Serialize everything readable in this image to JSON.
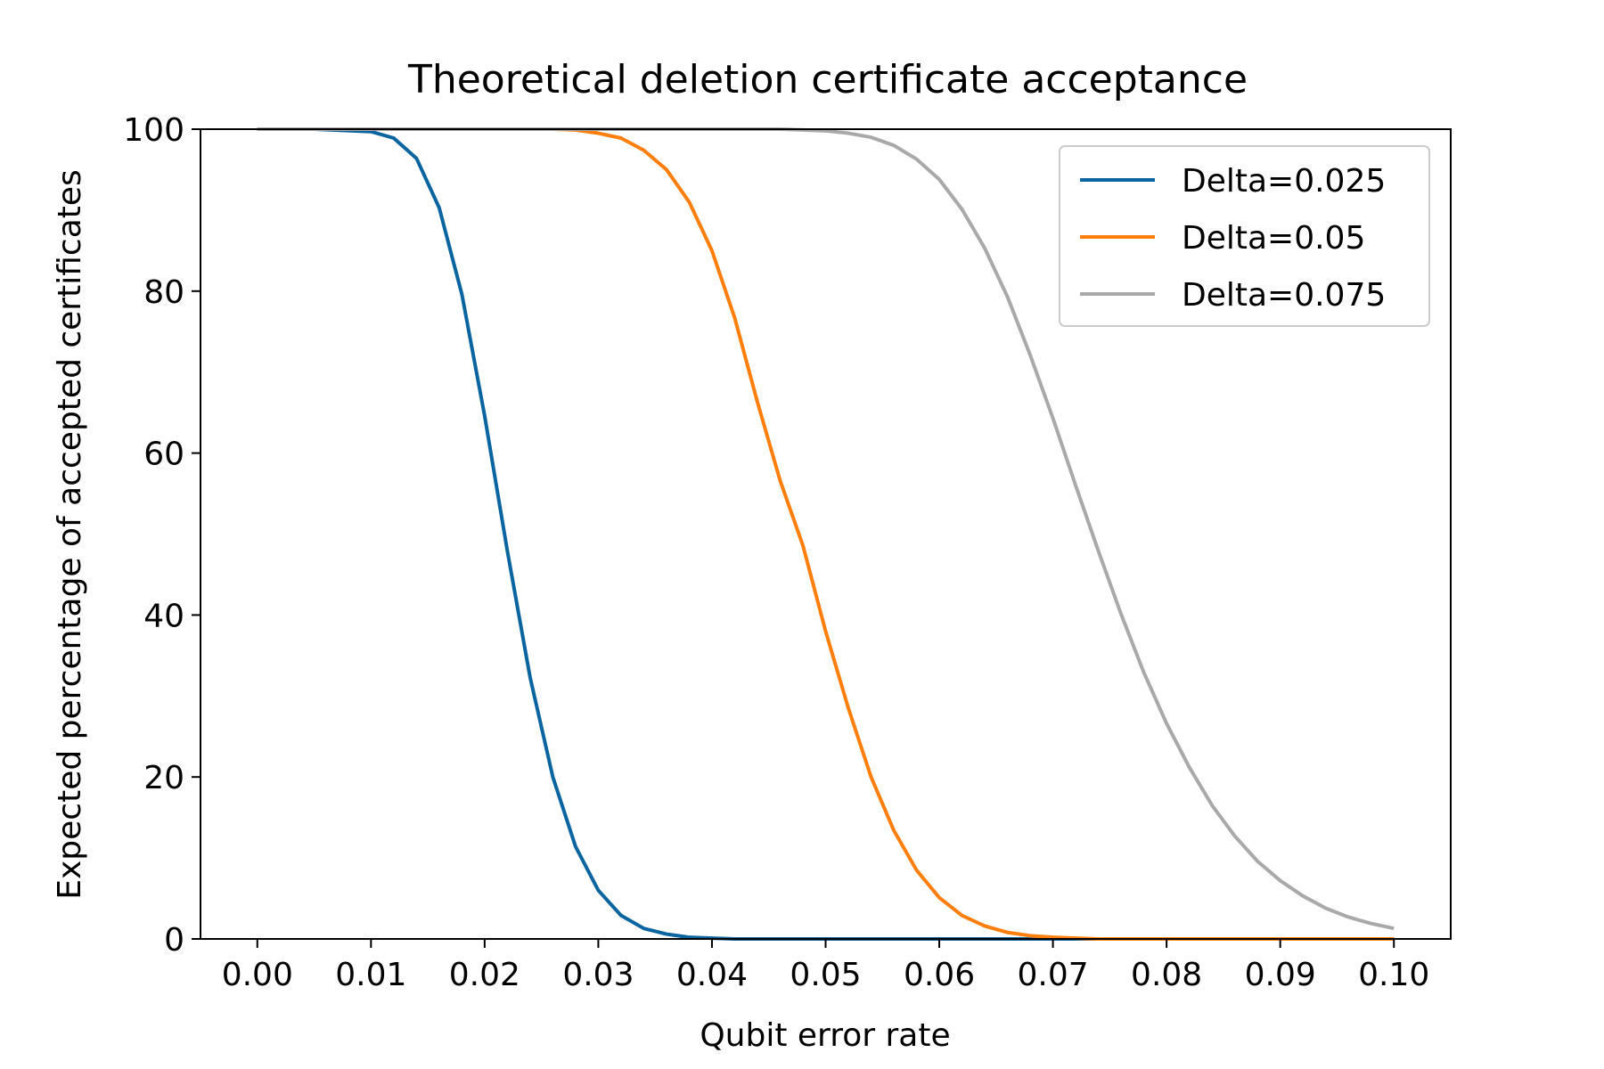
{
  "chart_data": {
    "type": "line",
    "title": "Theoretical deletion certificate acceptance",
    "xlabel": "Qubit error rate",
    "ylabel": "Expected percentage of accepted certificates",
    "xlim": [
      -0.005,
      0.105
    ],
    "ylim": [
      0,
      100
    ],
    "x_ticks": [
      "0.00",
      "0.01",
      "0.02",
      "0.03",
      "0.04",
      "0.05",
      "0.06",
      "0.07",
      "0.08",
      "0.09",
      "0.10"
    ],
    "y_ticks": [
      "0",
      "20",
      "40",
      "60",
      "80",
      "100"
    ],
    "grid": false,
    "legend_position": "top-right",
    "x": [
      0.0,
      0.005,
      0.01,
      0.012,
      0.014,
      0.016,
      0.018,
      0.02,
      0.022,
      0.024,
      0.026,
      0.028,
      0.03,
      0.032,
      0.034,
      0.036,
      0.038,
      0.04,
      0.042,
      0.044,
      0.046,
      0.048,
      0.05,
      0.052,
      0.054,
      0.056,
      0.058,
      0.06,
      0.062,
      0.064,
      0.066,
      0.068,
      0.07,
      0.072,
      0.074,
      0.076,
      0.078,
      0.08,
      0.082,
      0.084,
      0.086,
      0.088,
      0.09,
      0.092,
      0.094,
      0.096,
      0.098,
      0.1
    ],
    "series": [
      {
        "name": "Delta=0.025",
        "color": "#0a64a0",
        "values": [
          100.0,
          100.0,
          99.7,
          98.9,
          96.4,
          90.3,
          79.6,
          64.6,
          47.9,
          32.3,
          20.0,
          11.4,
          6.0,
          2.9,
          1.3,
          0.6,
          0.2,
          0.1,
          0.0,
          0.0,
          0.0,
          0.0,
          0.0,
          0.0,
          0.0,
          0.0,
          0.0,
          0.0,
          0.0,
          0.0,
          0.0,
          0.0,
          0.0,
          0.0,
          0.0,
          0.0,
          0.0,
          0.0,
          0.0,
          0.0,
          0.0,
          0.0,
          0.0,
          0.0,
          0.0,
          0.0,
          0.0,
          0.0
        ]
      },
      {
        "name": "Delta=0.05",
        "color": "#ff7f0e",
        "values": [
          100.0,
          100.0,
          100.0,
          100.0,
          100.0,
          100.0,
          100.0,
          100.0,
          100.0,
          100.0,
          100.0,
          99.9,
          99.5,
          98.9,
          97.4,
          95.0,
          91.0,
          85.0,
          76.7,
          66.3,
          56.6,
          48.6,
          38.0,
          28.5,
          20.0,
          13.4,
          8.5,
          5.1,
          2.9,
          1.6,
          0.8,
          0.4,
          0.2,
          0.1,
          0.0,
          0.0,
          0.0,
          0.0,
          0.0,
          0.0,
          0.0,
          0.0,
          0.0,
          0.0,
          0.0,
          0.0,
          0.0,
          0.0
        ]
      },
      {
        "name": "Delta=0.075",
        "color": "#a9a9a9",
        "values": [
          100.0,
          100.0,
          100.0,
          100.0,
          100.0,
          100.0,
          100.0,
          100.0,
          100.0,
          100.0,
          100.0,
          100.0,
          100.0,
          100.0,
          100.0,
          100.0,
          100.0,
          100.0,
          100.0,
          100.0,
          100.0,
          99.9,
          99.8,
          99.5,
          99.0,
          98.0,
          96.3,
          93.8,
          90.1,
          85.3,
          79.3,
          72.1,
          64.3,
          56.0,
          47.9,
          40.1,
          32.9,
          26.6,
          21.2,
          16.5,
          12.7,
          9.6,
          7.2,
          5.3,
          3.8,
          2.7,
          1.9,
          1.3
        ]
      }
    ]
  }
}
